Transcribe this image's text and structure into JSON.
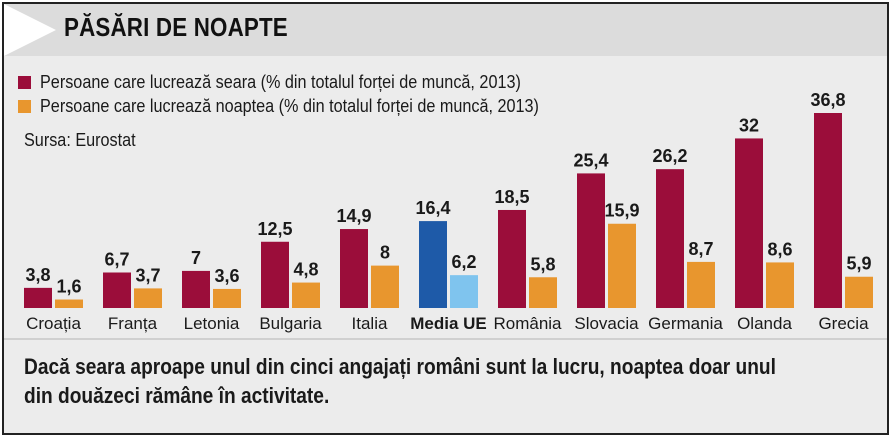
{
  "header": {
    "title": "PĂSĂRI DE NOAPTE"
  },
  "legend": [
    {
      "label": "Persoane care lucrează seara (% din totalul forței de muncă, 2013)",
      "color": "#9b0d3a"
    },
    {
      "label": "Persoane care lucrează noaptea (% din totalul forței de muncă, 2013)",
      "color": "#e8962e"
    }
  ],
  "source": "Sursa: Eurostat",
  "footer": {
    "caption": "Dacă seara aproape unul din cinci angajați români sunt la lucru, noaptea doar unul din douăzeci rămâne în activitate."
  },
  "colors": {
    "evening": "#9b0d3a",
    "night": "#e8962e",
    "eu_evening": "#1e5aa8",
    "eu_night": "#7fc4ee"
  },
  "chart_data": {
    "type": "bar",
    "categories": [
      "Croația",
      "Franța",
      "Letonia",
      "Bulgaria",
      "Italia",
      "Media UE",
      "România",
      "Slovacia",
      "Germania",
      "Olanda",
      "Grecia"
    ],
    "highlight_category": "Media UE",
    "series": [
      {
        "name": "Persoane care lucrează seara (% din totalul forței de muncă, 2013)",
        "values": [
          3.8,
          6.7,
          7,
          12.5,
          14.9,
          16.4,
          18.5,
          25.4,
          26.2,
          32,
          36.8
        ],
        "labels": [
          "3,8",
          "6,7",
          "7",
          "12,5",
          "14,9",
          "16,4",
          "18,5",
          "25,4",
          "26,2",
          "32",
          "36,8"
        ]
      },
      {
        "name": "Persoane care lucrează noaptea (% din totalul forței de muncă, 2013)",
        "values": [
          1.6,
          3.7,
          3.6,
          4.8,
          8,
          6.2,
          5.8,
          15.9,
          8.7,
          8.6,
          5.9
        ],
        "labels": [
          "1,6",
          "3,7",
          "3,6",
          "4,8",
          "8",
          "6,2",
          "5,8",
          "15,9",
          "8,7",
          "8,6",
          "5,9"
        ]
      }
    ],
    "ylim": [
      0,
      36.8
    ],
    "grid": false,
    "legend_position": "top-left"
  }
}
